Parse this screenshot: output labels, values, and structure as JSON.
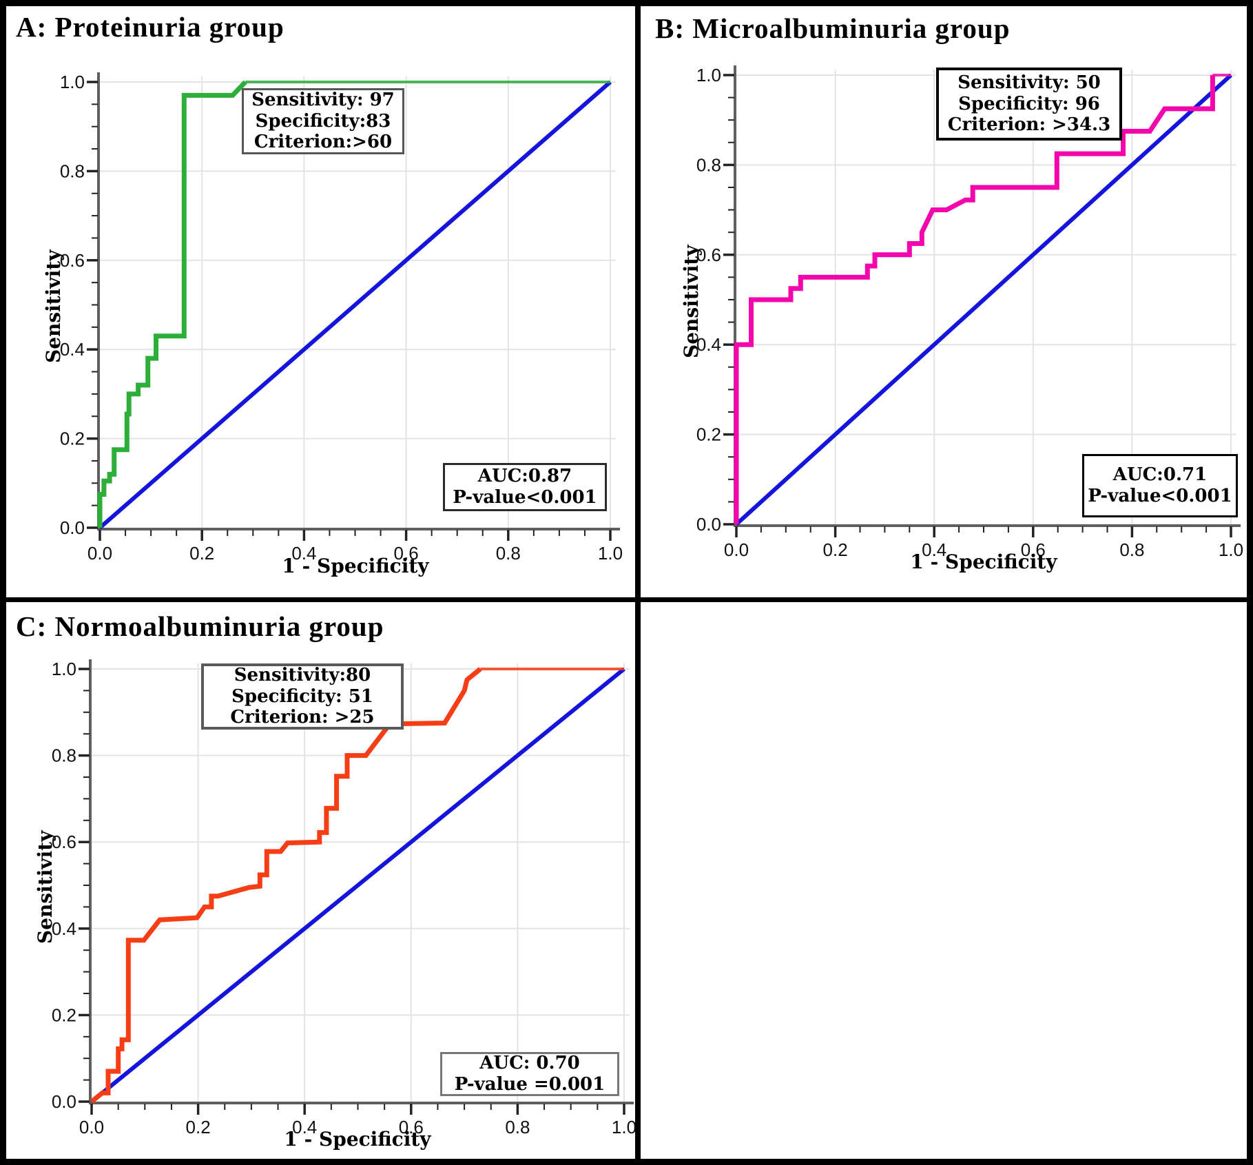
{
  "figure": {
    "background": "#ffffff",
    "border_color": "#000000",
    "grid_color": "#e3e3e3",
    "axis_color": "#5f5f5f"
  },
  "chart_data": [
    {
      "panel_label": "A",
      "type": "line",
      "title": "A: Proteinuria group",
      "xlabel": "1 - Specificity",
      "ylabel": "Sensitivity",
      "xlim": [
        0,
        1
      ],
      "ylim": [
        0,
        1
      ],
      "xticks": [
        "0.0",
        "0.2",
        "0.4",
        "0.6",
        "0.8",
        "1.0"
      ],
      "yticks": [
        "0.0",
        "0.2",
        "0.4",
        "0.6",
        "0.8",
        "1.0"
      ],
      "grid": true,
      "curve_color": "#2cae38",
      "diagonal_color": "#1414dd",
      "auc": 0.87,
      "p_value": "<0.001",
      "sensitivity": 97,
      "specificity": 83,
      "criterion": ">60",
      "annotation_box": {
        "lines": [
          "Sensitivity: 97",
          "Specificity:83",
          "Criterion:>60"
        ]
      },
      "auc_box": {
        "lines": [
          "AUC:0.87",
          "P-value<0.001"
        ]
      },
      "roc_points": [
        [
          0,
          0
        ],
        [
          0,
          0.075
        ],
        [
          0.008,
          0.075
        ],
        [
          0.008,
          0.105
        ],
        [
          0.019,
          0.105
        ],
        [
          0.019,
          0.12
        ],
        [
          0.028,
          0.12
        ],
        [
          0.028,
          0.175
        ],
        [
          0.053,
          0.175
        ],
        [
          0.053,
          0.255
        ],
        [
          0.057,
          0.255
        ],
        [
          0.057,
          0.3
        ],
        [
          0.075,
          0.3
        ],
        [
          0.075,
          0.32
        ],
        [
          0.094,
          0.32
        ],
        [
          0.094,
          0.38
        ],
        [
          0.11,
          0.38
        ],
        [
          0.11,
          0.43
        ],
        [
          0.165,
          0.43
        ],
        [
          0.165,
          0.97
        ],
        [
          0.26,
          0.97
        ],
        [
          0.285,
          1
        ],
        [
          1,
          1
        ]
      ]
    },
    {
      "panel_label": "B",
      "type": "line",
      "title": "B: Microalbuminuria group",
      "xlabel": "1 - Specificity",
      "ylabel": "Sensitivity",
      "xlim": [
        0,
        1
      ],
      "ylim": [
        0,
        1
      ],
      "xticks": [
        "0.0",
        "0.2",
        "0.4",
        "0.6",
        "0.8",
        "1.0"
      ],
      "yticks": [
        "0.0",
        "0.2",
        "0.4",
        "0.6",
        "0.8",
        "1.0"
      ],
      "grid": true,
      "curve_color": "#f307ad",
      "diagonal_color": "#1414dd",
      "auc": 0.71,
      "p_value": "<0.001",
      "sensitivity": 50,
      "specificity": 96,
      "criterion": ">34.3",
      "annotation_box": {
        "lines": [
          "Sensitivity: 50",
          "Specificity: 96",
          "Criterion: >34.3"
        ]
      },
      "auc_box": {
        "lines": [
          "AUC:0.71",
          "P-value<0.001"
        ]
      },
      "roc_points": [
        [
          0,
          0
        ],
        [
          0,
          0.4
        ],
        [
          0.03,
          0.4
        ],
        [
          0.03,
          0.5
        ],
        [
          0.11,
          0.5
        ],
        [
          0.11,
          0.525
        ],
        [
          0.13,
          0.525
        ],
        [
          0.13,
          0.55
        ],
        [
          0.265,
          0.55
        ],
        [
          0.265,
          0.575
        ],
        [
          0.28,
          0.575
        ],
        [
          0.28,
          0.6
        ],
        [
          0.35,
          0.6
        ],
        [
          0.35,
          0.625
        ],
        [
          0.375,
          0.625
        ],
        [
          0.375,
          0.65
        ],
        [
          0.397,
          0.7
        ],
        [
          0.425,
          0.7
        ],
        [
          0.463,
          0.722
        ],
        [
          0.478,
          0.722
        ],
        [
          0.478,
          0.75
        ],
        [
          0.648,
          0.75
        ],
        [
          0.648,
          0.825
        ],
        [
          0.782,
          0.825
        ],
        [
          0.782,
          0.875
        ],
        [
          0.836,
          0.875
        ],
        [
          0.866,
          0.925
        ],
        [
          0.963,
          0.925
        ],
        [
          0.963,
          1
        ],
        [
          1,
          1
        ]
      ]
    },
    {
      "panel_label": "C",
      "type": "line",
      "title": "C: Normoalbuminuria group",
      "xlabel": "1 - Specificity",
      "ylabel": "Sensitivity",
      "xlim": [
        0,
        1
      ],
      "ylim": [
        0,
        1
      ],
      "xticks": [
        "0.0",
        "0.2",
        "0.4",
        "0.6",
        "0.8",
        "1.0"
      ],
      "yticks": [
        "0.0",
        "0.2",
        "0.4",
        "0.6",
        "0.8",
        "1.0"
      ],
      "grid": true,
      "curve_color": "#f53d16",
      "diagonal_color": "#1414dd",
      "auc": 0.7,
      "p_value": "=0.001",
      "sensitivity": 80,
      "specificity": 51,
      "criterion": ">25",
      "annotation_box": {
        "lines": [
          "Sensitivity:80",
          "Specificity: 51",
          "Criterion: >25"
        ]
      },
      "auc_box": {
        "lines": [
          "AUC: 0.70",
          "P-value =0.001"
        ]
      },
      "roc_points": [
        [
          0,
          0
        ],
        [
          0.02,
          0.02
        ],
        [
          0.031,
          0.02
        ],
        [
          0.031,
          0.07
        ],
        [
          0.05,
          0.07
        ],
        [
          0.05,
          0.122
        ],
        [
          0.057,
          0.122
        ],
        [
          0.057,
          0.143
        ],
        [
          0.069,
          0.143
        ],
        [
          0.069,
          0.373
        ],
        [
          0.098,
          0.373
        ],
        [
          0.128,
          0.42
        ],
        [
          0.198,
          0.425
        ],
        [
          0.212,
          0.45
        ],
        [
          0.225,
          0.45
        ],
        [
          0.225,
          0.475
        ],
        [
          0.237,
          0.475
        ],
        [
          0.296,
          0.495
        ],
        [
          0.316,
          0.498
        ],
        [
          0.316,
          0.524
        ],
        [
          0.329,
          0.524
        ],
        [
          0.329,
          0.578
        ],
        [
          0.355,
          0.578
        ],
        [
          0.368,
          0.598
        ],
        [
          0.428,
          0.6
        ],
        [
          0.428,
          0.622
        ],
        [
          0.441,
          0.622
        ],
        [
          0.441,
          0.678
        ],
        [
          0.46,
          0.678
        ],
        [
          0.46,
          0.752
        ],
        [
          0.48,
          0.752
        ],
        [
          0.48,
          0.8
        ],
        [
          0.515,
          0.8
        ],
        [
          0.56,
          0.873
        ],
        [
          0.663,
          0.875
        ],
        [
          0.7,
          0.95
        ],
        [
          0.705,
          0.975
        ],
        [
          0.73,
          1
        ],
        [
          1,
          1
        ]
      ]
    }
  ]
}
